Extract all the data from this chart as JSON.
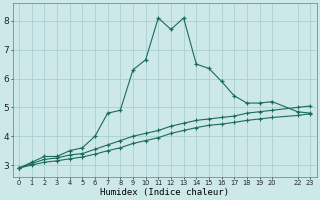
{
  "xlabel": "Humidex (Indice chaleur)",
  "bg_color": "#cce8e8",
  "grid_color": "#aacfcf",
  "line_color": "#1a6b5a",
  "x_ticks": [
    0,
    1,
    2,
    3,
    4,
    5,
    6,
    7,
    8,
    9,
    10,
    11,
    12,
    13,
    14,
    15,
    16,
    17,
    18,
    19,
    20,
    22,
    23
  ],
  "x_tick_labels": [
    "0",
    "1",
    "2",
    "3",
    "4",
    "5",
    "6",
    "7",
    "8",
    "9",
    "10",
    "11",
    "12",
    "13",
    "14",
    "15",
    "16",
    "17",
    "18",
    "19",
    "20",
    "22",
    "23"
  ],
  "yticks": [
    3,
    4,
    5,
    6,
    7,
    8
  ],
  "ylim": [
    2.6,
    8.6
  ],
  "xlim": [
    -0.5,
    23.5
  ],
  "series1_x": [
    0,
    1,
    2,
    3,
    4,
    5,
    6,
    7,
    8,
    9,
    10,
    11,
    12,
    13,
    14,
    15,
    16,
    17,
    18,
    19,
    20,
    22,
    23
  ],
  "series1_y": [
    2.9,
    3.1,
    3.3,
    3.3,
    3.5,
    3.6,
    4.0,
    4.8,
    4.9,
    6.3,
    6.65,
    8.1,
    7.7,
    8.1,
    6.5,
    6.35,
    5.9,
    5.4,
    5.15,
    5.15,
    5.2,
    4.85,
    4.8
  ],
  "series2_x": [
    0,
    1,
    2,
    3,
    4,
    5,
    6,
    7,
    8,
    9,
    10,
    11,
    12,
    13,
    14,
    15,
    16,
    17,
    18,
    19,
    20,
    22,
    23
  ],
  "series2_y": [
    2.9,
    3.05,
    3.2,
    3.25,
    3.35,
    3.4,
    3.55,
    3.7,
    3.85,
    4.0,
    4.1,
    4.2,
    4.35,
    4.45,
    4.55,
    4.6,
    4.65,
    4.7,
    4.8,
    4.85,
    4.9,
    5.0,
    5.05
  ],
  "series3_x": [
    0,
    1,
    2,
    3,
    4,
    5,
    6,
    7,
    8,
    9,
    10,
    11,
    12,
    13,
    14,
    15,
    16,
    17,
    18,
    19,
    20,
    22,
    23
  ],
  "series3_y": [
    2.9,
    3.0,
    3.1,
    3.15,
    3.22,
    3.28,
    3.38,
    3.5,
    3.6,
    3.75,
    3.85,
    3.95,
    4.1,
    4.2,
    4.3,
    4.38,
    4.42,
    4.48,
    4.55,
    4.6,
    4.65,
    4.72,
    4.78
  ]
}
